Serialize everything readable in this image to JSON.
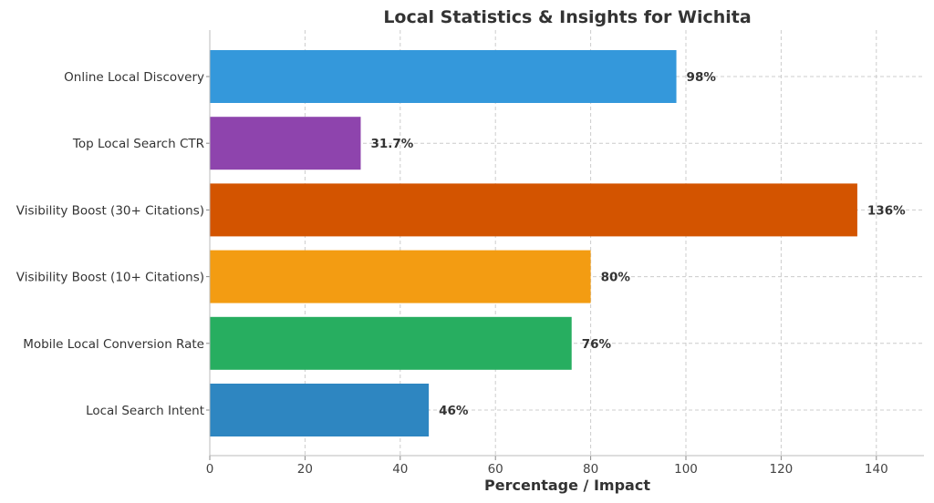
{
  "chart_data": {
    "type": "bar",
    "orientation": "horizontal",
    "title": "Local Statistics & Insights for Wichita",
    "xlabel": "Percentage / Impact",
    "ylabel": "",
    "xlim": [
      0,
      150
    ],
    "xticks": [
      0,
      20,
      40,
      60,
      80,
      100,
      120,
      140
    ],
    "grid": true,
    "categories": [
      "Online Local Discovery",
      "Top Local Search CTR",
      "Visibility Boost (30+ Citations)",
      "Visibility Boost (10+ Citations)",
      "Mobile Local Conversion Rate",
      "Local Search Intent"
    ],
    "values": [
      98,
      31.7,
      136,
      80,
      76,
      46
    ],
    "value_labels": [
      "98%",
      "31.7%",
      "136%",
      "80%",
      "76%",
      "46%"
    ],
    "colors": [
      "#3498db",
      "#8e44ad",
      "#d35400",
      "#f39c12",
      "#27ae60",
      "#2e86c1"
    ]
  }
}
